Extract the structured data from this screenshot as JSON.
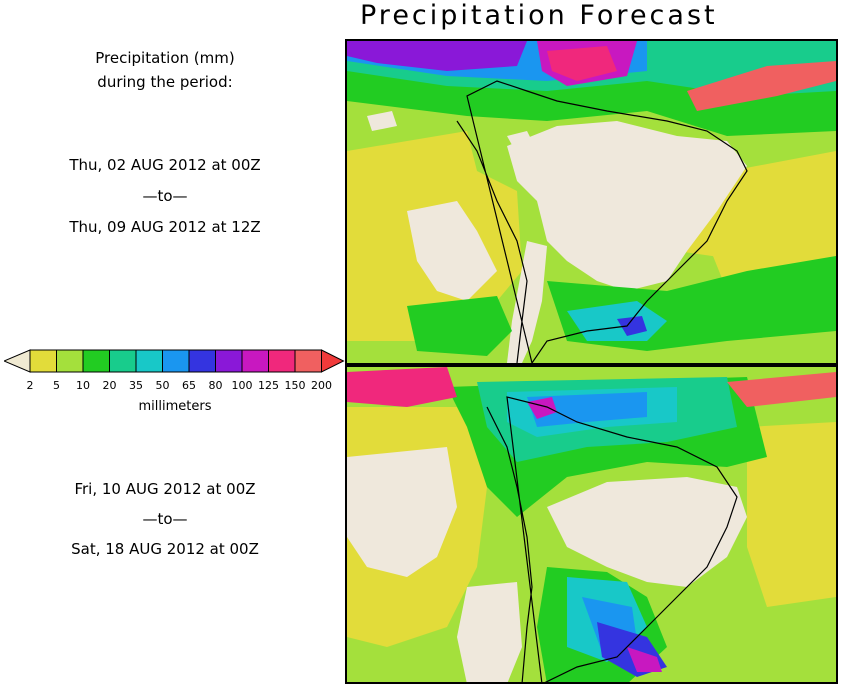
{
  "title": "Precipitation Forecast",
  "legend_caption": {
    "line1": "Precipitation (mm)",
    "line2": "during the period:"
  },
  "period1": {
    "start": "Thu, 02 AUG 2012 at 00Z",
    "separator": "—to—",
    "end": "Thu, 09 AUG 2012 at 12Z"
  },
  "period2": {
    "start": "Fri, 10 AUG 2012 at 00Z",
    "separator": "—to—",
    "end": "Sat, 18 AUG 2012 at 00Z"
  },
  "colorbar": {
    "units": "millimeters",
    "ticks": [
      "2",
      "5",
      "10",
      "20",
      "35",
      "50",
      "65",
      "80",
      "100",
      "125",
      "150",
      "200"
    ],
    "colors": [
      "#e2dc3a",
      "#a4e03c",
      "#22cc22",
      "#18cc8c",
      "#18c8c8",
      "#1a96f0",
      "#3434e0",
      "#8a18d8",
      "#c818c0",
      "#f0287c",
      "#f06060"
    ],
    "under_color": "#f0ead2",
    "over_color": "#f03a3a"
  },
  "palette": {
    "dry": "#efe8dc",
    "yellow": "#e2dc3a",
    "lightgreen": "#a4e03c",
    "green": "#22cc22",
    "teal": "#18cc8c",
    "cyan": "#18c8c8",
    "blue": "#1a96f0",
    "darkblue": "#3434e0",
    "purple": "#8a18d8",
    "magenta": "#c818c0",
    "pink": "#f0287c",
    "red": "#f06060"
  }
}
